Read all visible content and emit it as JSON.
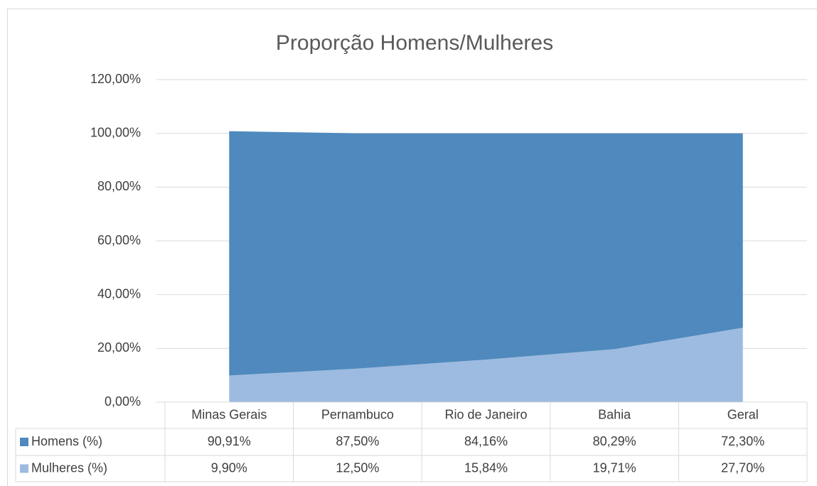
{
  "chart_data": {
    "type": "area",
    "title": "Proporção Homens/Mulheres",
    "categories": [
      "Minas Gerais",
      "Pernambuco",
      "Rio de Janeiro",
      "Bahia",
      "Geral"
    ],
    "series": [
      {
        "name": "Homens (%)",
        "color": "#4f89bd",
        "values": [
          90.91,
          87.5,
          84.16,
          80.29,
          72.3
        ],
        "value_labels": [
          "90,91%",
          "87,50%",
          "84,16%",
          "80,29%",
          "72,30%"
        ]
      },
      {
        "name": "Mulheres (%)",
        "color": "#9dbbe0",
        "values": [
          9.9,
          12.5,
          15.84,
          19.71,
          27.7
        ],
        "value_labels": [
          "9,90%",
          "12,50%",
          "15,84%",
          "19,71%",
          "27,70%"
        ]
      }
    ],
    "stacked": true,
    "ylim": [
      0,
      120
    ],
    "yticks": [
      {
        "value": 0,
        "label": "0,00%"
      },
      {
        "value": 20,
        "label": "20,00%"
      },
      {
        "value": 40,
        "label": "40,00%"
      },
      {
        "value": 60,
        "label": "60,00%"
      },
      {
        "value": 80,
        "label": "80,00%"
      },
      {
        "value": 100,
        "label": "100,00%"
      },
      {
        "value": 120,
        "label": "120,00%"
      }
    ],
    "grid": true
  }
}
